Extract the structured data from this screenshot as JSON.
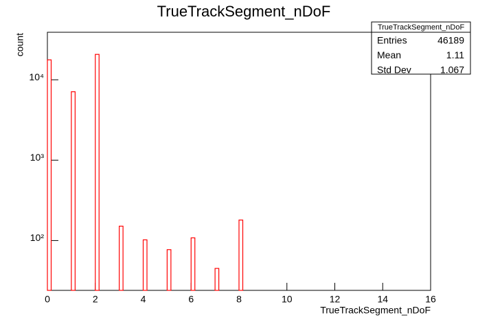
{
  "chart_data": {
    "type": "bar",
    "title": "TrueTrackSegment_nDoF",
    "x_label": "TrueTrackSegment_nDoF",
    "y_label": "count",
    "x": [
      0,
      1,
      2,
      3,
      4,
      5,
      6,
      7,
      8
    ],
    "values": [
      17700,
      7100,
      20700,
      151,
      102,
      77,
      108,
      45,
      180
    ],
    "color": "#ff0000",
    "log_y": true,
    "xlim": [
      0,
      16
    ],
    "xticks": [
      0,
      2,
      4,
      6,
      8,
      10,
      12,
      14,
      16
    ],
    "ylim": [
      24,
      39000
    ],
    "yticks": [
      {
        "value": 100,
        "label": "10²"
      },
      {
        "value": 1000,
        "label": "10³"
      },
      {
        "value": 10000,
        "label": "10⁴"
      }
    ],
    "stats": {
      "title": "TrueTrackSegment_nDoF",
      "rows": [
        [
          "Entries",
          "46189"
        ],
        [
          "Mean",
          "1.11"
        ],
        [
          "Std Dev",
          "1.067"
        ]
      ]
    }
  }
}
